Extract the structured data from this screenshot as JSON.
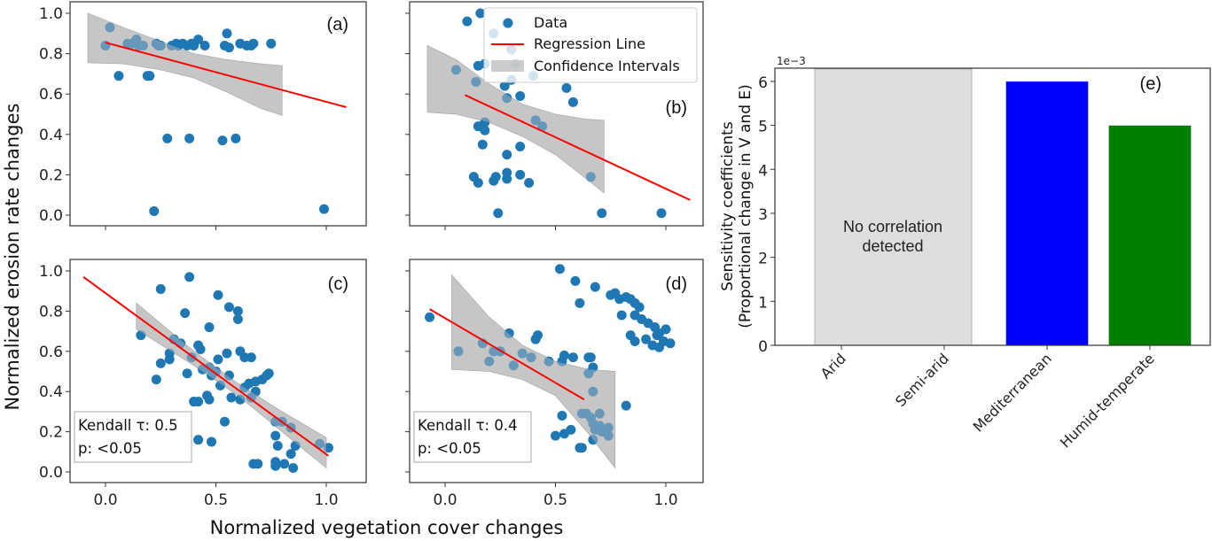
{
  "figure": {
    "shared_ylabel": "Normalized erosion rate changes",
    "shared_xlabel": "Normalized vegetation cover changes"
  },
  "colors": {
    "data": "#1f77b4",
    "regression": "#ff0000",
    "ci_fill": "#bfbfbf",
    "no_corr_fill": "#dedede",
    "mediterranean": "#0000ff",
    "humid_temperate": "#008000"
  },
  "legend": {
    "data_label": "Data",
    "regression_label": "Regression Line",
    "ci_label": "Confidence Intervals"
  },
  "chart_data": [
    {
      "type": "scatter",
      "panel": "(a)",
      "xlim": [
        -0.16,
        1.18
      ],
      "ylim": [
        -0.05,
        1.05
      ],
      "xticks": [
        "0.0",
        "0.5",
        "1.0"
      ],
      "yticks": [
        "0.0",
        "0.2",
        "0.4",
        "0.6",
        "0.8",
        "1.0"
      ],
      "show_xtick_labels": false,
      "show_ytick_labels": true,
      "regression": {
        "x": [
          0.0,
          1.09
        ],
        "y": [
          0.855,
          0.535
        ]
      },
      "ci": {
        "x": [
          -0.08,
          0.08,
          0.25,
          0.4,
          0.55,
          0.7,
          0.8
        ],
        "upper": [
          1.0,
          0.93,
          0.86,
          0.8,
          0.77,
          0.75,
          0.74
        ],
        "lower": [
          0.755,
          0.75,
          0.72,
          0.68,
          0.61,
          0.53,
          0.495
        ]
      },
      "points": [
        [
          0.0,
          0.84
        ],
        [
          0.02,
          0.93
        ],
        [
          0.06,
          0.69
        ],
        [
          0.1,
          0.85
        ],
        [
          0.12,
          0.85
        ],
        [
          0.14,
          0.87
        ],
        [
          0.15,
          0.84
        ],
        [
          0.17,
          0.84
        ],
        [
          0.19,
          0.69
        ],
        [
          0.2,
          0.69
        ],
        [
          0.23,
          0.85
        ],
        [
          0.24,
          0.84
        ],
        [
          0.25,
          0.84
        ],
        [
          0.28,
          0.38
        ],
        [
          0.22,
          0.02
        ],
        [
          0.3,
          0.84
        ],
        [
          0.32,
          0.85
        ],
        [
          0.33,
          0.84
        ],
        [
          0.35,
          0.85
        ],
        [
          0.37,
          0.84
        ],
        [
          0.38,
          0.38
        ],
        [
          0.39,
          0.85
        ],
        [
          0.4,
          0.84
        ],
        [
          0.42,
          0.87
        ],
        [
          0.45,
          0.84
        ],
        [
          0.53,
          0.37
        ],
        [
          0.54,
          0.84
        ],
        [
          0.55,
          0.9
        ],
        [
          0.56,
          0.83
        ],
        [
          0.59,
          0.38
        ],
        [
          0.61,
          0.85
        ],
        [
          0.64,
          0.84
        ],
        [
          0.66,
          0.84
        ],
        [
          0.67,
          0.85
        ],
        [
          0.75,
          0.85
        ],
        [
          0.99,
          0.03
        ]
      ],
      "stats": null
    },
    {
      "type": "scatter",
      "panel": "(b)",
      "xlim": [
        -0.16,
        1.18
      ],
      "ylim": [
        -0.05,
        1.05
      ],
      "xticks": [
        "0.0",
        "0.5",
        "1.0"
      ],
      "yticks": [
        "0.0",
        "0.2",
        "0.4",
        "0.6",
        "0.8",
        "1.0"
      ],
      "show_xtick_labels": false,
      "show_ytick_labels": false,
      "regression": {
        "x": [
          0.09,
          1.11
        ],
        "y": [
          0.595,
          0.075
        ]
      },
      "ci": {
        "x": [
          -0.08,
          0.05,
          0.2,
          0.35,
          0.5,
          0.64,
          0.72
        ],
        "upper": [
          0.84,
          0.77,
          0.65,
          0.55,
          0.5,
          0.475,
          0.47
        ],
        "lower": [
          0.51,
          0.5,
          0.46,
          0.39,
          0.3,
          0.18,
          0.11
        ]
      },
      "points": [
        [
          0.1,
          0.96
        ],
        [
          0.16,
          1.0
        ],
        [
          0.28,
          0.95
        ],
        [
          0.22,
          0.9
        ],
        [
          0.3,
          0.82
        ],
        [
          0.15,
          0.74
        ],
        [
          0.18,
          0.75
        ],
        [
          0.32,
          0.75
        ],
        [
          0.05,
          0.72
        ],
        [
          0.14,
          0.66
        ],
        [
          0.3,
          0.67
        ],
        [
          0.4,
          0.69
        ],
        [
          0.27,
          0.64
        ],
        [
          0.28,
          0.58
        ],
        [
          0.34,
          0.59
        ],
        [
          0.55,
          0.63
        ],
        [
          0.58,
          0.56
        ],
        [
          0.15,
          0.44
        ],
        [
          0.17,
          0.44
        ],
        [
          0.18,
          0.46
        ],
        [
          0.18,
          0.42
        ],
        [
          0.41,
          0.47
        ],
        [
          0.44,
          0.44
        ],
        [
          0.17,
          0.35
        ],
        [
          0.34,
          0.34
        ],
        [
          0.28,
          0.3
        ],
        [
          0.13,
          0.19
        ],
        [
          0.15,
          0.16
        ],
        [
          0.22,
          0.17
        ],
        [
          0.23,
          0.19
        ],
        [
          0.28,
          0.21
        ],
        [
          0.28,
          0.18
        ],
        [
          0.34,
          0.2
        ],
        [
          0.38,
          0.16
        ],
        [
          0.66,
          0.19
        ],
        [
          0.24,
          0.01
        ],
        [
          0.71,
          0.01
        ],
        [
          0.98,
          0.01
        ]
      ],
      "stats": null
    },
    {
      "type": "scatter",
      "panel": "(c)",
      "xlim": [
        -0.16,
        1.18
      ],
      "ylim": [
        -0.05,
        1.05
      ],
      "xticks": [
        "0.0",
        "0.5",
        "1.0"
      ],
      "yticks": [
        "0.0",
        "0.2",
        "0.4",
        "0.6",
        "0.8",
        "1.0"
      ],
      "show_xtick_labels": true,
      "show_ytick_labels": true,
      "regression": {
        "x": [
          -0.1,
          1.01
        ],
        "y": [
          0.97,
          0.08
        ]
      },
      "ci": {
        "x": [
          0.14,
          0.4,
          0.6,
          0.8,
          1.0
        ],
        "upper": [
          0.84,
          0.6,
          0.44,
          0.3,
          0.17
        ],
        "lower": [
          0.71,
          0.53,
          0.38,
          0.2,
          0.02
        ]
      },
      "points": [
        [
          0.16,
          0.68
        ],
        [
          0.25,
          0.91
        ],
        [
          0.38,
          0.97
        ],
        [
          0.51,
          0.88
        ],
        [
          0.36,
          0.79
        ],
        [
          0.56,
          0.82
        ],
        [
          0.6,
          0.8
        ],
        [
          0.6,
          0.76
        ],
        [
          0.47,
          0.72
        ],
        [
          0.31,
          0.66
        ],
        [
          0.34,
          0.64
        ],
        [
          0.42,
          0.63
        ],
        [
          0.43,
          0.61
        ],
        [
          0.29,
          0.59
        ],
        [
          0.29,
          0.56
        ],
        [
          0.39,
          0.57
        ],
        [
          0.51,
          0.56
        ],
        [
          0.55,
          0.59
        ],
        [
          0.61,
          0.6
        ],
        [
          0.63,
          0.57
        ],
        [
          0.66,
          0.57
        ],
        [
          0.25,
          0.54
        ],
        [
          0.23,
          0.46
        ],
        [
          0.37,
          0.49
        ],
        [
          0.44,
          0.51
        ],
        [
          0.47,
          0.52
        ],
        [
          0.48,
          0.48
        ],
        [
          0.5,
          0.5
        ],
        [
          0.56,
          0.48
        ],
        [
          0.52,
          0.43
        ],
        [
          0.63,
          0.42
        ],
        [
          0.65,
          0.44
        ],
        [
          0.68,
          0.45
        ],
        [
          0.71,
          0.46
        ],
        [
          0.73,
          0.48
        ],
        [
          0.74,
          0.49
        ],
        [
          0.46,
          0.38
        ],
        [
          0.47,
          0.36
        ],
        [
          0.4,
          0.35
        ],
        [
          0.42,
          0.35
        ],
        [
          0.57,
          0.37
        ],
        [
          0.61,
          0.36
        ],
        [
          0.68,
          0.4
        ],
        [
          0.66,
          0.37
        ],
        [
          0.54,
          0.25
        ],
        [
          0.42,
          0.16
        ],
        [
          0.48,
          0.15
        ],
        [
          0.77,
          0.25
        ],
        [
          0.8,
          0.25
        ],
        [
          0.84,
          0.22
        ],
        [
          0.77,
          0.18
        ],
        [
          0.78,
          0.13
        ],
        [
          0.86,
          0.13
        ],
        [
          0.84,
          0.09
        ],
        [
          0.97,
          0.14
        ],
        [
          1.01,
          0.12
        ],
        [
          0.67,
          0.04
        ],
        [
          0.69,
          0.04
        ],
        [
          0.77,
          0.05
        ],
        [
          0.77,
          0.03
        ],
        [
          0.81,
          0.04
        ],
        [
          0.85,
          0.02
        ]
      ],
      "stats": {
        "line1": "Kendall τ: 0.5",
        "line2": "p: <0.05"
      }
    },
    {
      "type": "scatter",
      "panel": "(d)",
      "xlim": [
        -0.16,
        1.18
      ],
      "ylim": [
        -0.05,
        1.05
      ],
      "xticks": [
        "0.0",
        "0.5",
        "1.0"
      ],
      "yticks": [
        "0.0",
        "0.2",
        "0.4",
        "0.6",
        "0.8",
        "1.0"
      ],
      "show_xtick_labels": true,
      "show_ytick_labels": false,
      "regression": {
        "x": [
          -0.07,
          0.63
        ],
        "y": [
          0.81,
          0.36
        ]
      },
      "ci": {
        "x": [
          0.03,
          0.2,
          0.35,
          0.5,
          0.65,
          0.77
        ],
        "upper": [
          0.98,
          0.77,
          0.63,
          0.55,
          0.51,
          0.5
        ],
        "lower": [
          0.51,
          0.5,
          0.46,
          0.38,
          0.19,
          0.02
        ]
      },
      "points": [
        [
          -0.07,
          0.77
        ],
        [
          0.06,
          0.6
        ],
        [
          0.17,
          0.64
        ],
        [
          0.2,
          0.55
        ],
        [
          0.22,
          0.6
        ],
        [
          0.25,
          0.6
        ],
        [
          0.29,
          0.69
        ],
        [
          0.31,
          0.53
        ],
        [
          0.35,
          0.59
        ],
        [
          0.39,
          0.57
        ],
        [
          0.41,
          0.66
        ],
        [
          0.42,
          0.68
        ],
        [
          0.47,
          0.55
        ],
        [
          0.53,
          0.55
        ],
        [
          0.54,
          0.58
        ],
        [
          0.58,
          0.57
        ],
        [
          0.65,
          0.57
        ],
        [
          0.66,
          0.57
        ],
        [
          0.67,
          0.52
        ],
        [
          0.65,
          0.49
        ],
        [
          0.67,
          0.4
        ],
        [
          0.52,
          1.01
        ],
        [
          0.59,
          0.95
        ],
        [
          0.61,
          0.84
        ],
        [
          0.68,
          0.92
        ],
        [
          0.75,
          0.88
        ],
        [
          0.77,
          0.89
        ],
        [
          0.79,
          0.86
        ],
        [
          0.82,
          0.87
        ],
        [
          0.84,
          0.86
        ],
        [
          0.86,
          0.84
        ],
        [
          0.88,
          0.82
        ],
        [
          0.8,
          0.78
        ],
        [
          0.86,
          0.78
        ],
        [
          0.89,
          0.76
        ],
        [
          0.92,
          0.74
        ],
        [
          0.95,
          0.72
        ],
        [
          0.97,
          0.69
        ],
        [
          1.0,
          0.71
        ],
        [
          0.84,
          0.68
        ],
        [
          0.86,
          0.65
        ],
        [
          0.91,
          0.66
        ],
        [
          0.94,
          0.63
        ],
        [
          0.97,
          0.62
        ],
        [
          1.02,
          0.64
        ],
        [
          0.99,
          0.65
        ],
        [
          0.96,
          0.68
        ],
        [
          0.82,
          0.33
        ],
        [
          0.53,
          0.28
        ],
        [
          0.5,
          0.18
        ],
        [
          0.54,
          0.19
        ],
        [
          0.57,
          0.21
        ],
        [
          0.62,
          0.29
        ],
        [
          0.64,
          0.29
        ],
        [
          0.66,
          0.27
        ],
        [
          0.67,
          0.24
        ],
        [
          0.68,
          0.21
        ],
        [
          0.7,
          0.23
        ],
        [
          0.71,
          0.2
        ],
        [
          0.74,
          0.22
        ],
        [
          0.74,
          0.18
        ],
        [
          0.67,
          0.16
        ],
        [
          0.61,
          0.12
        ],
        [
          0.62,
          0.12
        ],
        [
          0.7,
          0.29
        ]
      ],
      "stats": {
        "line1": "Kendall τ: 0.4",
        "line2": "p: <0.05"
      }
    },
    {
      "type": "bar",
      "panel": "(e)",
      "ylabel_line1": "Sensitivity coefficients",
      "ylabel_line2": "(Proportional change in V and E)",
      "y_offset_label": "1e−3",
      "ylim": [
        0,
        0.0063
      ],
      "yticks": [
        "0",
        "1",
        "2",
        "3",
        "4",
        "5",
        "6"
      ],
      "categories": [
        "Arid",
        "Semi-arid",
        "Mediterranean",
        "Humid-temperate"
      ],
      "values": [
        null,
        null,
        0.006,
        0.005
      ],
      "no_correlation_span": [
        "Arid",
        "Semi-arid"
      ],
      "no_correlation_note_line1": "No correlation",
      "no_correlation_note_line2": "detected"
    }
  ]
}
